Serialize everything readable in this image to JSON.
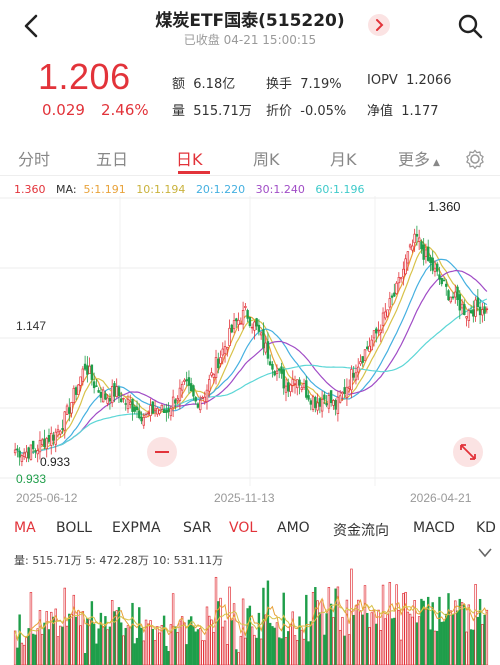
{
  "header": {
    "title": "煤炭ETF国泰(515220)",
    "subtitle": "已收盘 04-21 15:00:15"
  },
  "quote": {
    "price": "1.206",
    "change": "0.029",
    "change_pct": "2.46%",
    "stats": [
      {
        "label": "额",
        "value": "6.18亿"
      },
      {
        "label": "换手",
        "value": "7.19%"
      },
      {
        "label": "IOPV",
        "value": "1.2066"
      },
      {
        "label": "量",
        "value": "515.71万"
      },
      {
        "label": "折价",
        "value": "-0.05%"
      },
      {
        "label": "净值",
        "value": "1.177"
      }
    ]
  },
  "period_tabs": [
    "分时",
    "五日",
    "日K",
    "周K",
    "月K",
    "更多"
  ],
  "active_period": "日K",
  "colors": {
    "up": "#e2333a",
    "down": "#1f9e4a",
    "ma5": "#e8a23a",
    "ma10": "#d8c24a",
    "ma20": "#45b0e0",
    "ma30": "#a04cc6",
    "ma60": "#5cd6d6"
  },
  "ma_legend": {
    "value": "1.360",
    "label": "MA:",
    "items": [
      {
        "name": "5:1.191",
        "color": "#e8a23a"
      },
      {
        "name": "10:1.194",
        "color": "#d8c24a"
      },
      {
        "name": "20:1.220",
        "color": "#45b0e0"
      },
      {
        "name": "30:1.240",
        "color": "#a04cc6"
      },
      {
        "name": "60:1.196",
        "color": "#5cd6d6"
      }
    ]
  },
  "chart_data": {
    "type": "candlestick",
    "price_labels": {
      "high": "1.360",
      "mid": "1.147",
      "low": "0.933",
      "low_left": "0.933"
    },
    "x_labels": [
      "2025-06-12",
      "2025-11-13",
      "2026-04-21"
    ],
    "ylim": [
      0.9,
      1.4
    ],
    "close_path": [
      0.94,
      0.935,
      0.94,
      0.96,
      0.97,
      1.0,
      1.05,
      1.1,
      1.06,
      1.04,
      1.05,
      1.03,
      1.02,
      1.0,
      1.02,
      1.01,
      1.04,
      1.06,
      1.03,
      1.05,
      1.1,
      1.14,
      1.18,
      1.2,
      1.17,
      1.13,
      1.09,
      1.06,
      1.08,
      1.05,
      1.03,
      1.04,
      1.02,
      1.06,
      1.1,
      1.13,
      1.16,
      1.2,
      1.24,
      1.3,
      1.34,
      1.3,
      1.27,
      1.24,
      1.22,
      1.2,
      1.21,
      1.206
    ]
  },
  "indicator_tabs": [
    "MA",
    "BOLL",
    "EXPMA",
    "SAR",
    "VOL",
    "AMO",
    "资金流向",
    "MACD",
    "KD"
  ],
  "indicator_active": [
    "MA",
    "VOL"
  ],
  "volume_legend": "量:  515.71万  5:  472.28万  10:  531.11万"
}
